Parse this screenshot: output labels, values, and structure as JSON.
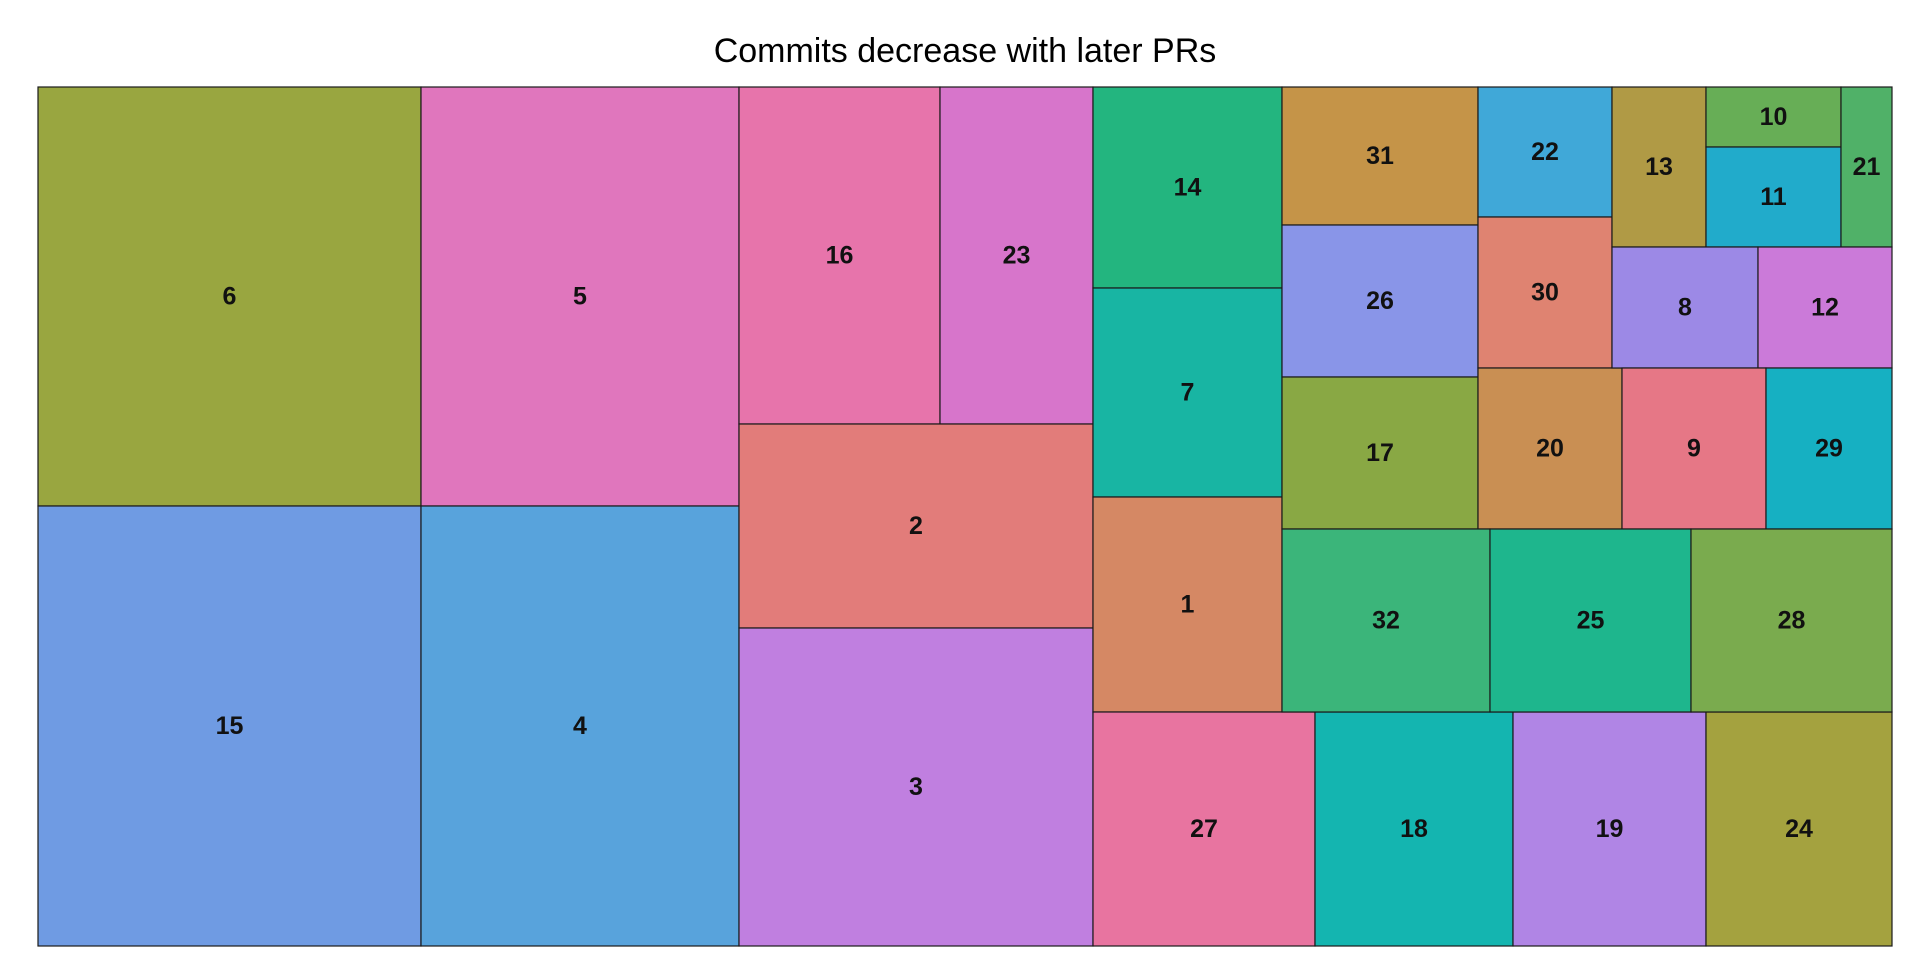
{
  "chart_data": {
    "type": "treemap",
    "title": "Commits decrease with later PRs",
    "tiles": [
      {
        "label": "6",
        "value": 99,
        "color": "#99a640"
      },
      {
        "label": "15",
        "value": 104,
        "color": "#6f9be3"
      },
      {
        "label": "5",
        "value": 82,
        "color": "#e076bd"
      },
      {
        "label": "4",
        "value": 86,
        "color": "#58a3dc"
      },
      {
        "label": "16",
        "value": 42,
        "color": "#e774ab"
      },
      {
        "label": "23",
        "value": 32,
        "color": "#d775cb"
      },
      {
        "label": "2",
        "value": 44,
        "color": "#e27c7a"
      },
      {
        "label": "3",
        "value": 64,
        "color": "#c07fe0"
      },
      {
        "label": "14",
        "value": 24,
        "color": "#23b57f"
      },
      {
        "label": "7",
        "value": 25,
        "color": "#18b5a3"
      },
      {
        "label": "1",
        "value": 26,
        "color": "#d58864"
      },
      {
        "label": "27",
        "value": 32,
        "color": "#e874a0"
      },
      {
        "label": "18",
        "value": 29,
        "color": "#14b5b0"
      },
      {
        "label": "19",
        "value": 28,
        "color": "#b085e5"
      },
      {
        "label": "24",
        "value": 27,
        "color": "#a4a23f"
      },
      {
        "label": "31",
        "value": 17,
        "color": "#c59448"
      },
      {
        "label": "26",
        "value": 19,
        "color": "#8995e8"
      },
      {
        "label": "17",
        "value": 19,
        "color": "#89a844"
      },
      {
        "label": "22",
        "value": 13,
        "color": "#40a8d8"
      },
      {
        "label": "30",
        "value": 15,
        "color": "#df8371"
      },
      {
        "label": "20",
        "value": 15,
        "color": "#c98f53"
      },
      {
        "label": "13",
        "value": 9,
        "color": "#b09a45"
      },
      {
        "label": "10",
        "value": 5,
        "color": "#67ae56"
      },
      {
        "label": "11",
        "value": 7,
        "color": "#21abcb"
      },
      {
        "label": "21",
        "value": 5,
        "color": "#50b168"
      },
      {
        "label": "8",
        "value": 11,
        "color": "#9c89e6"
      },
      {
        "label": "12",
        "value": 10,
        "color": "#cb7ad9"
      },
      {
        "label": "9",
        "value": 15,
        "color": "#e67786"
      },
      {
        "label": "29",
        "value": 13,
        "color": "#16b0c2"
      },
      {
        "label": "32",
        "value": 25,
        "color": "#3bb57a"
      },
      {
        "label": "25",
        "value": 24,
        "color": "#1eb68d"
      },
      {
        "label": "28",
        "value": 24,
        "color": "#7aab4e"
      }
    ]
  }
}
